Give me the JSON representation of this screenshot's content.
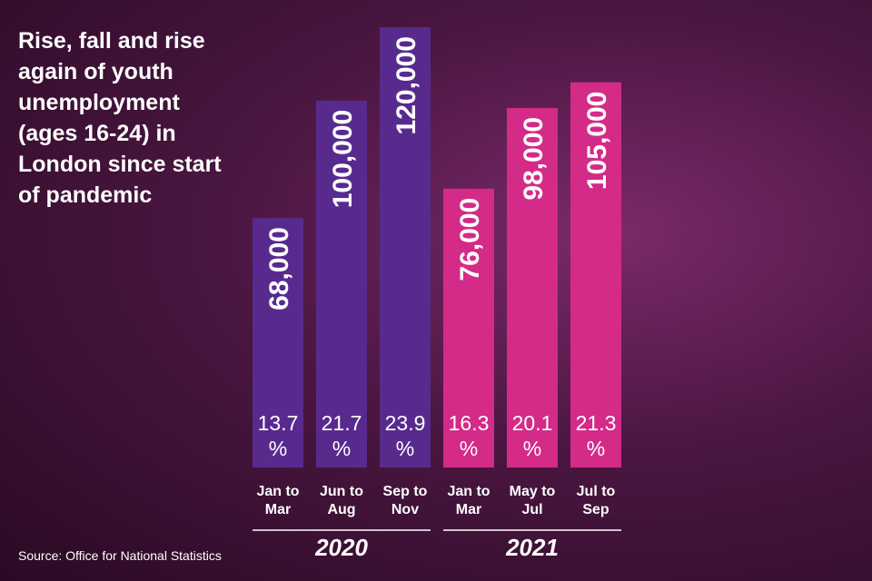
{
  "chart_data": {
    "type": "bar",
    "title": "Rise, fall and rise again of youth unemployment (ages 16-24) in London since start of pandemic",
    "source": "Source: Office for National Statistics",
    "groups": [
      {
        "label": "2020",
        "color": "#582a8e",
        "categories": [
          "Jan to Mar",
          "Jun to Aug",
          "Sep to Nov"
        ],
        "values": [
          68000,
          100000,
          120000
        ],
        "value_labels": [
          "68,000",
          "100,000",
          "120,000"
        ],
        "rates": [
          13.7,
          21.7,
          23.9
        ],
        "rate_labels": [
          "13.7 %",
          "21.7 %",
          "23.9 %"
        ]
      },
      {
        "label": "2021",
        "color": "#d42a88",
        "categories": [
          "Jan to Mar",
          "May to Jul",
          "Jul to Sep"
        ],
        "values": [
          76000,
          98000,
          105000
        ],
        "value_labels": [
          "76,000",
          "98,000",
          "105,000"
        ],
        "rates": [
          16.3,
          20.1,
          21.3
        ],
        "rate_labels": [
          "16.3 %",
          "20.1 %",
          "21.3 %"
        ]
      }
    ]
  }
}
